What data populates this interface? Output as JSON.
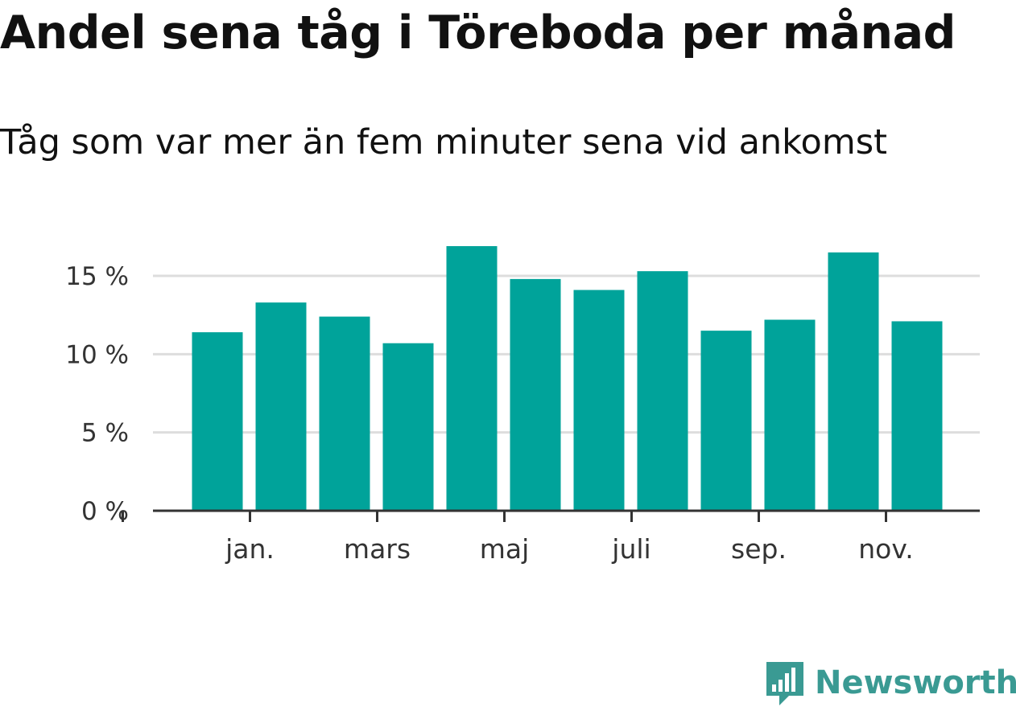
{
  "colors": {
    "bar": "#00a39a",
    "grid": "#dddddd",
    "axis": "#333333",
    "brand": "#3a9a93"
  },
  "brand": {
    "name": "Newsworthy",
    "icon": "bar-chart-speech-bubble-icon"
  },
  "chart_data": {
    "type": "bar",
    "title": "Andel sena tåg i Töreboda per månad",
    "subtitle": "Tåg som var mer än fem minuter sena vid ankomst",
    "xlabel": "",
    "ylabel": "",
    "ylim": [
      0,
      18.5
    ],
    "grid": true,
    "y_ticks": [
      {
        "value": 0,
        "label": "0 %"
      },
      {
        "value": 5,
        "label": "5 %"
      },
      {
        "value": 10,
        "label": "10 %"
      },
      {
        "value": 15,
        "label": "15 %"
      }
    ],
    "x_tick_labels": [
      {
        "index": 2,
        "label": "jan."
      },
      {
        "index": 4,
        "label": "mars"
      },
      {
        "index": 6,
        "label": "maj"
      },
      {
        "index": 8,
        "label": "juli"
      },
      {
        "index": 10,
        "label": "sep."
      },
      {
        "index": 12,
        "label": "nov."
      }
    ],
    "values": [
      11.4,
      13.3,
      12.4,
      10.7,
      16.9,
      14.8,
      14.1,
      15.3,
      11.5,
      12.2,
      16.5,
      12.1
    ]
  }
}
